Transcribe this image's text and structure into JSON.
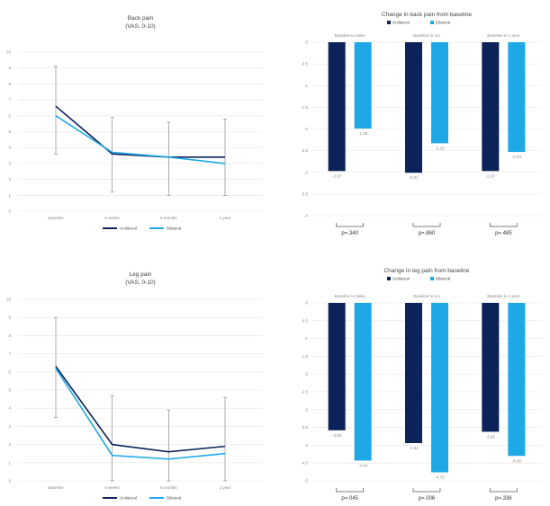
{
  "colors": {
    "dark": "#0b2358",
    "light": "#1fa8e6",
    "grid": "#e4e4e4",
    "err": "#8a8a8a"
  },
  "legend": [
    "Unilateral",
    "Bilateral"
  ],
  "chart_data": [
    {
      "id": "back-pain-line",
      "type": "line",
      "title": "Back pain",
      "subtitle": "(VAS, 0-10)",
      "categories": [
        "Baseline",
        "6 weeks",
        "6 months",
        "1 year"
      ],
      "ylim": [
        0,
        10
      ],
      "yticks": [
        "0",
        "1",
        "2",
        "3",
        "4",
        "5",
        "6",
        "7",
        "8",
        "9",
        "10"
      ],
      "series": [
        {
          "name": "Unilateral",
          "values": [
            6.6,
            3.6,
            3.4,
            3.4
          ],
          "err_lo": [
            3.6,
            1.2,
            1.0,
            1.0
          ],
          "err_hi": [
            9.1,
            5.9,
            5.6,
            5.8
          ]
        },
        {
          "name": "Bilateral",
          "values": [
            6.0,
            3.7,
            3.4,
            3.0
          ]
        }
      ],
      "legend_position": "bottom"
    },
    {
      "id": "back-pain-change",
      "type": "bar",
      "title": "Change in back pain from baseline",
      "groups": [
        "Baseline to 6wks",
        "Baseline to 1m",
        "Baseline to 1 year"
      ],
      "ylim": [
        -4,
        0
      ],
      "yticks": [
        "0",
        "-0.5",
        "-1",
        "-1.5",
        "-2",
        "-2.5",
        "-3",
        "-3.5",
        "-4"
      ],
      "series": [
        {
          "name": "Unilateral",
          "values": [
            -2.97,
            -3.01,
            -2.97
          ],
          "labels": [
            "-2.97",
            "-3.01",
            "-2.97"
          ]
        },
        {
          "name": "Bilateral",
          "values": [
            -1.99,
            -2.33,
            -2.53
          ],
          "labels": [
            "-1.99",
            "-2.33",
            "-2.53"
          ]
        }
      ],
      "p_values": [
        "p=.340",
        "p=.860",
        "p=.485"
      ],
      "legend_position": "top"
    },
    {
      "id": "leg-pain-line",
      "type": "line",
      "title": "Leg pain",
      "subtitle": "(VAS, 0-10)",
      "categories": [
        "Baseline",
        "6 weeks",
        "6 months",
        "1 year"
      ],
      "ylim": [
        0,
        10
      ],
      "yticks": [
        "0",
        "1",
        "2",
        "3",
        "4",
        "5",
        "6",
        "7",
        "8",
        "9",
        "10"
      ],
      "series": [
        {
          "name": "Unilateral",
          "values": [
            6.3,
            2.0,
            1.6,
            1.9
          ],
          "err_lo": [
            3.5,
            0.0,
            0.0,
            0.0
          ],
          "err_hi": [
            9.0,
            4.7,
            3.9,
            4.6
          ]
        },
        {
          "name": "Bilateral",
          "values": [
            6.2,
            1.4,
            1.2,
            1.5
          ]
        }
      ],
      "legend_position": "bottom"
    },
    {
      "id": "leg-pain-change",
      "type": "bar",
      "title": "Change in leg pain from baseline",
      "groups": [
        "Baseline to 6wks",
        "Baseline to 1m",
        "Baseline to 1 year"
      ],
      "ylim": [
        -5,
        0
      ],
      "yticks": [
        "0",
        "-0.5",
        "-1",
        "-1.5",
        "-2",
        "-2.5",
        "-3",
        "-3.5",
        "-4",
        "-4.5",
        "-5"
      ],
      "series": [
        {
          "name": "Unilateral",
          "values": [
            -3.58,
            -3.94,
            -3.62
          ],
          "labels": [
            "-3.58",
            "-3.94",
            "-3.62"
          ]
        },
        {
          "name": "Bilateral",
          "values": [
            -4.43,
            -4.76,
            -4.3
          ],
          "labels": [
            "-4.43",
            "-4.76",
            "-4.30"
          ]
        }
      ],
      "p_values": [
        "p=.045",
        "p=.006",
        "p=.336"
      ],
      "legend_position": "top"
    }
  ]
}
